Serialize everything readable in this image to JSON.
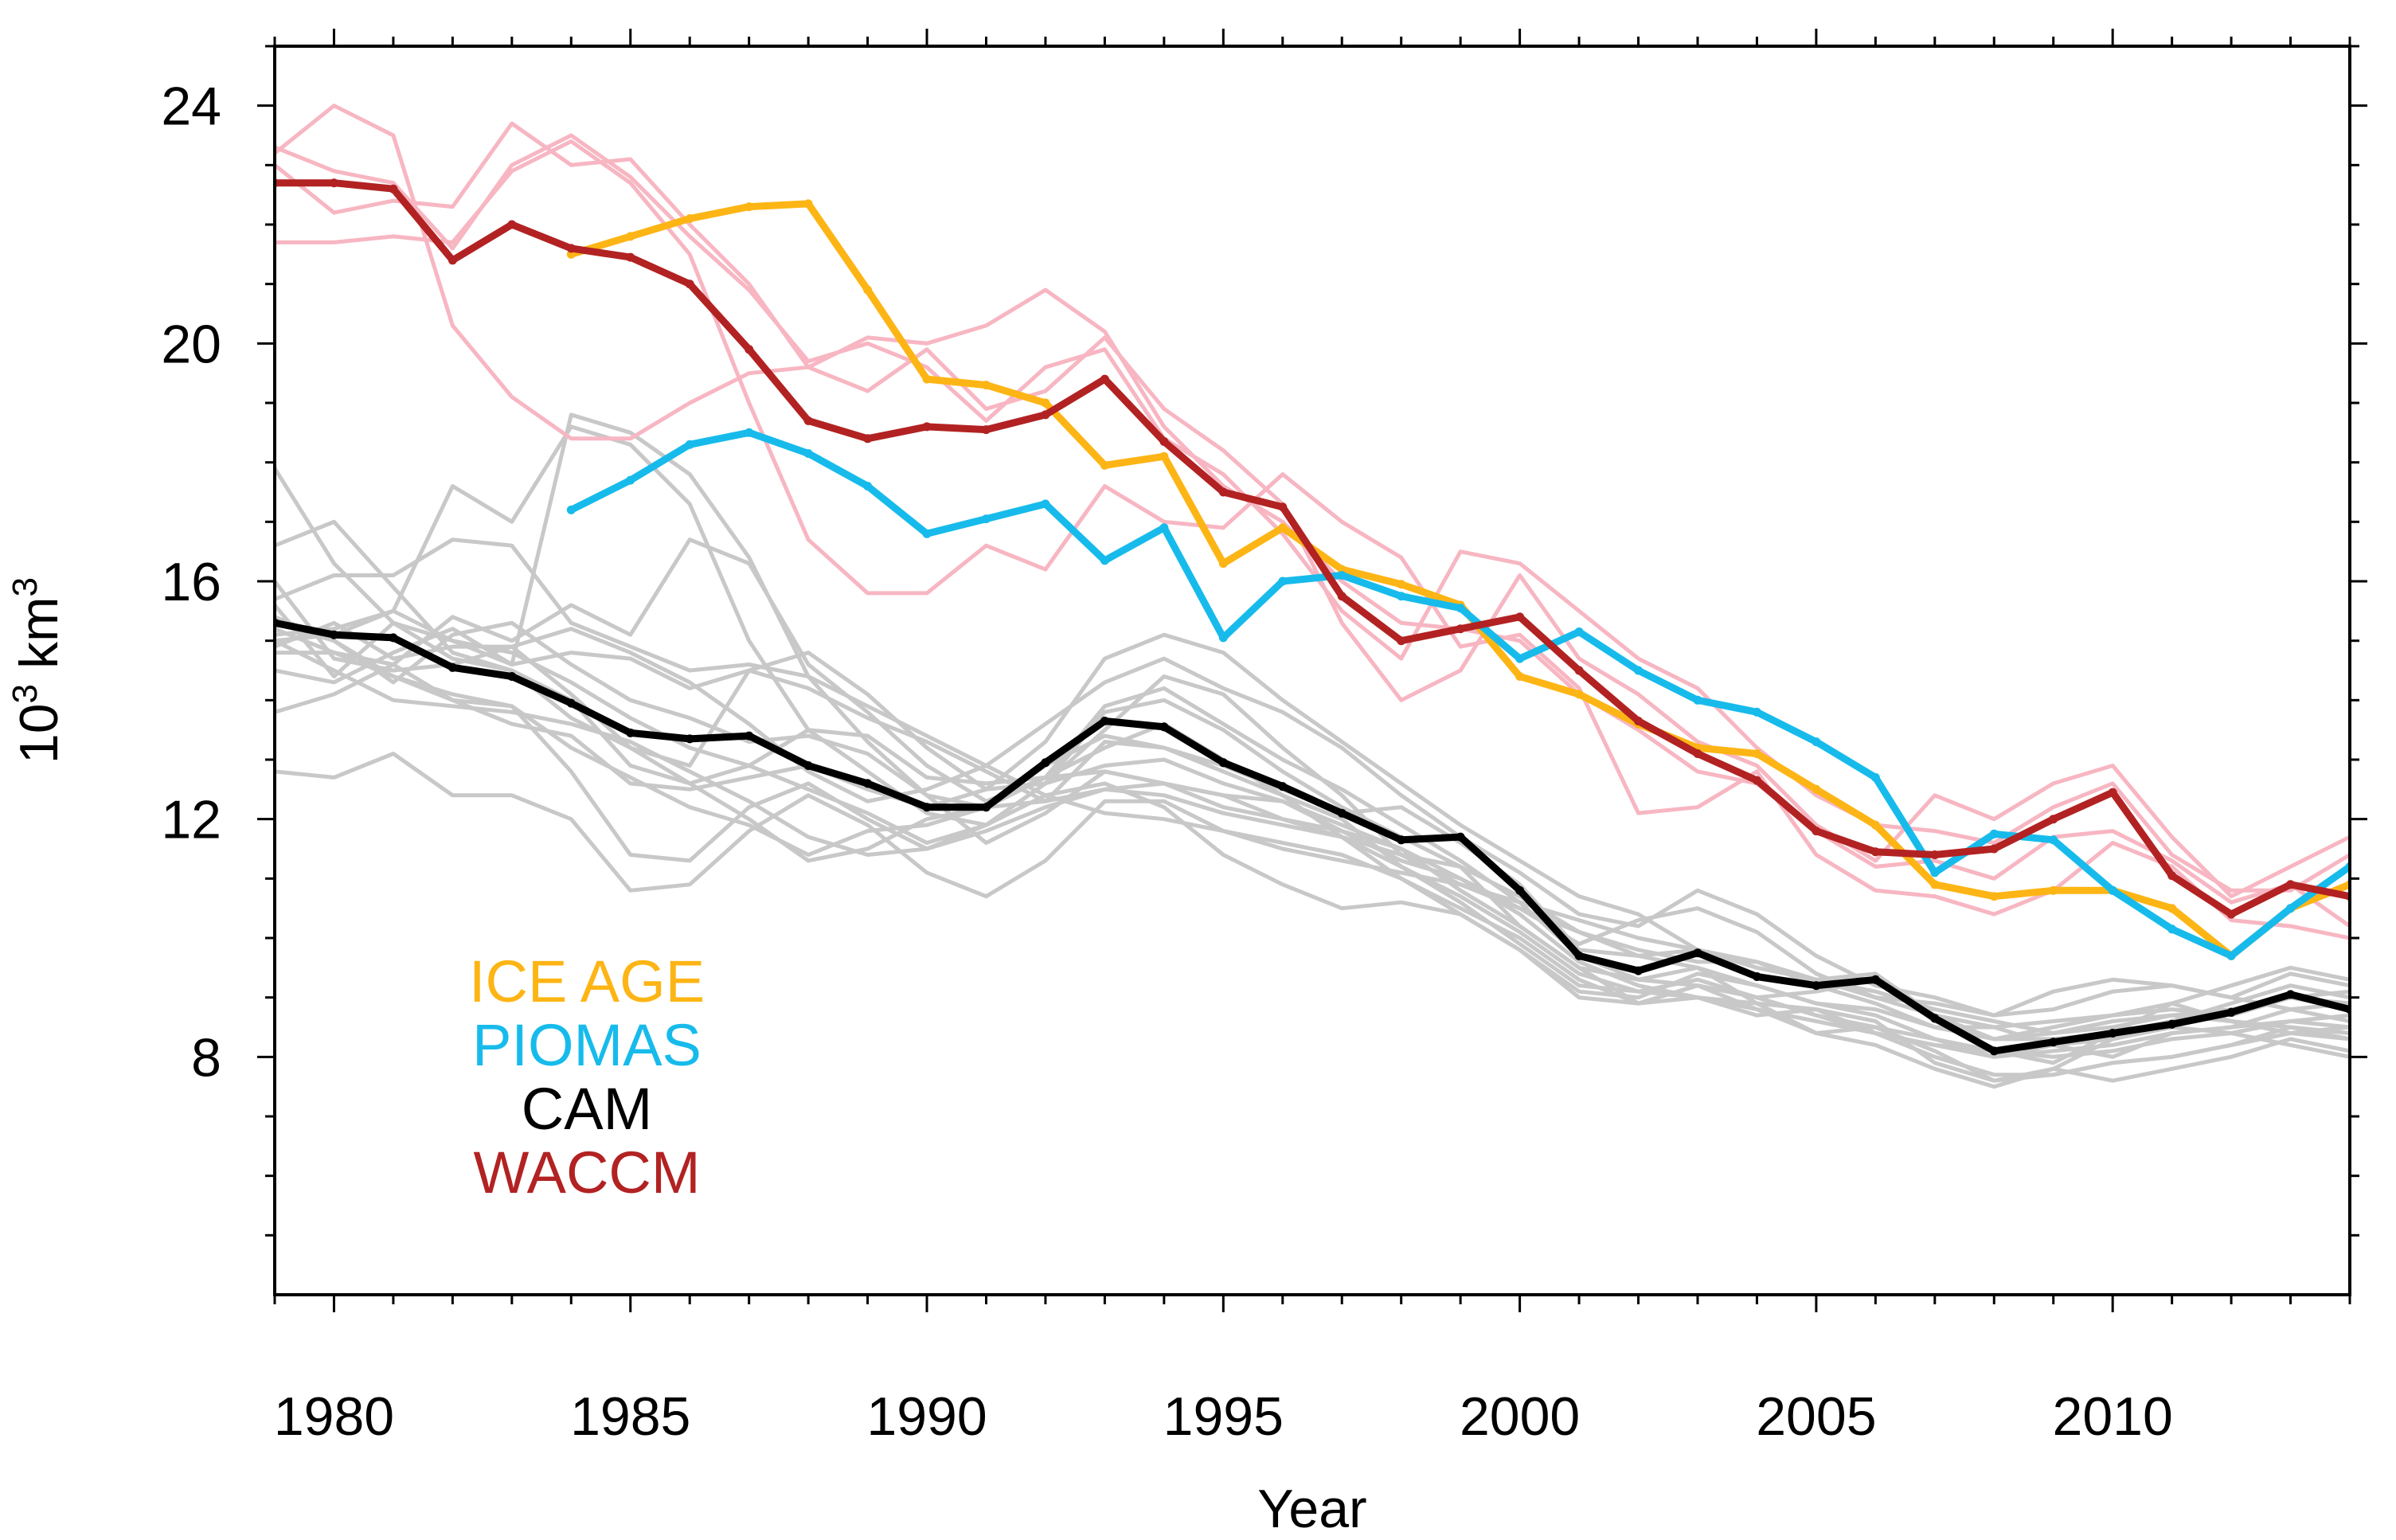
{
  "chart_data": {
    "type": "line",
    "title": "",
    "xlabel": "Year",
    "ylabel": "10",
    "ylabel_sup1": "3",
    "ylabel_unit": " km",
    "ylabel_sup2": "3",
    "xlim": [
      1979,
      2014
    ],
    "ylim": [
      4,
      25
    ],
    "xticks": [
      1980,
      1985,
      1990,
      1995,
      2000,
      2005,
      2010
    ],
    "yticks": [
      8,
      12,
      16,
      20,
      24
    ],
    "grid": false,
    "legend_position": "lower-left",
    "legend": [
      {
        "label": "ICE AGE",
        "color": "#FDB515"
      },
      {
        "label": "PIOMAS",
        "color": "#17BBEB"
      },
      {
        "label": "CAM",
        "color": "#000000"
      },
      {
        "label": "WACCM",
        "color": "#B22222"
      }
    ],
    "ensemble_colors": {
      "cam_members": "#C8C8C8",
      "waccm_members": "#F7B6C2"
    },
    "series": [
      {
        "name": "ICE AGE",
        "color": "#FDB515",
        "x": [
          1984,
          1985,
          1986,
          1987,
          1988,
          1989,
          1990,
          1991,
          1992,
          1993,
          1994,
          1995,
          1996,
          1997,
          1998,
          1999,
          2000,
          2001,
          2002,
          2003,
          2004,
          2005,
          2006,
          2007,
          2008,
          2009,
          2010,
          2011,
          2012,
          2013,
          2014
        ],
        "y": [
          21.5,
          21.8,
          22.1,
          22.3,
          22.35,
          20.9,
          19.4,
          19.3,
          19.0,
          17.95,
          18.1,
          16.3,
          16.9,
          16.2,
          15.95,
          15.6,
          14.4,
          14.1,
          13.6,
          13.2,
          13.1,
          12.5,
          11.9,
          10.9,
          10.7,
          10.8,
          10.8,
          10.5,
          9.7,
          10.5,
          10.9
        ]
      },
      {
        "name": "PIOMAS",
        "color": "#17BBEB",
        "x": [
          1984,
          1985,
          1986,
          1987,
          1988,
          1989,
          1990,
          1991,
          1992,
          1993,
          1994,
          1995,
          1996,
          1997,
          1998,
          1999,
          2000,
          2001,
          2002,
          2003,
          2004,
          2005,
          2006,
          2007,
          2008,
          2009,
          2010,
          2011,
          2012,
          2013,
          2014
        ],
        "y": [
          17.2,
          17.7,
          18.3,
          18.5,
          18.15,
          17.6,
          16.8,
          17.05,
          17.3,
          16.35,
          16.9,
          15.05,
          16.0,
          16.1,
          15.75,
          15.55,
          14.7,
          15.15,
          14.5,
          14.0,
          13.8,
          13.3,
          12.7,
          11.1,
          11.75,
          11.65,
          10.8,
          10.15,
          9.7,
          10.5,
          11.2
        ]
      },
      {
        "name": "CAM",
        "color": "#000000",
        "x": [
          1979,
          1980,
          1981,
          1982,
          1983,
          1984,
          1985,
          1986,
          1987,
          1988,
          1989,
          1990,
          1991,
          1992,
          1993,
          1994,
          1995,
          1996,
          1997,
          1998,
          1999,
          2000,
          2001,
          2002,
          2003,
          2004,
          2005,
          2006,
          2007,
          2008,
          2009,
          2010,
          2011,
          2012,
          2013,
          2014
        ],
        "y": [
          15.3,
          15.1,
          15.05,
          14.55,
          14.4,
          13.95,
          13.45,
          13.35,
          13.4,
          12.9,
          12.6,
          12.2,
          12.2,
          12.95,
          13.65,
          13.55,
          12.95,
          12.55,
          12.1,
          11.65,
          11.7,
          10.8,
          9.7,
          9.45,
          9.75,
          9.35,
          9.2,
          9.3,
          8.65,
          8.1,
          8.25,
          8.4,
          8.55,
          8.75,
          9.05,
          8.8
        ]
      },
      {
        "name": "WACCM",
        "color": "#B22222",
        "x": [
          1979,
          1980,
          1981,
          1982,
          1983,
          1984,
          1985,
          1986,
          1987,
          1988,
          1989,
          1990,
          1991,
          1992,
          1993,
          1994,
          1995,
          1996,
          1997,
          1998,
          1999,
          2000,
          2001,
          2002,
          2003,
          2004,
          2005,
          2006,
          2007,
          2008,
          2009,
          2010,
          2011,
          2012,
          2013,
          2014
        ],
        "y": [
          22.7,
          22.7,
          22.6,
          21.4,
          22.0,
          21.6,
          21.45,
          21.0,
          19.9,
          18.7,
          18.4,
          18.6,
          18.55,
          18.8,
          19.4,
          18.35,
          17.5,
          17.25,
          15.75,
          15.0,
          15.2,
          15.4,
          14.5,
          13.65,
          13.1,
          12.65,
          11.8,
          11.45,
          11.4,
          11.5,
          12.0,
          12.45,
          11.05,
          10.4,
          10.9,
          10.7
        ]
      }
    ],
    "cam_members": [
      [
        15.3,
        15.0,
        14.3,
        15.1,
        15.3,
        14.6,
        14.0,
        13.7,
        13.3,
        13.4,
        13.1,
        12.4,
        12.2,
        12.3,
        13.3,
        13.2,
        12.9,
        12.5,
        12.1,
        12.2,
        11.6,
        10.9,
        9.8,
        9.7,
        9.8,
        9.5,
        9.3,
        9.4,
        8.7,
        8.3,
        8.3,
        8.4,
        8.6,
        8.8,
        9.0,
        8.8
      ],
      [
        14.9,
        15.3,
        14.7,
        14.9,
        14.9,
        14.1,
        13.2,
        12.6,
        12.9,
        12.5,
        12.1,
        11.6,
        11.9,
        12.6,
        13.5,
        14.4,
        14.1,
        13.2,
        12.4,
        11.4,
        11.2,
        10.2,
        9.5,
        9.3,
        9.2,
        8.8,
        8.4,
        8.5,
        8.1,
        7.6,
        7.7,
        7.9,
        8.0,
        8.2,
        8.5,
        8.3
      ],
      [
        15.4,
        15.0,
        14.4,
        14.1,
        13.9,
        12.8,
        11.4,
        11.3,
        12.2,
        12.6,
        12.0,
        11.5,
        11.8,
        12.2,
        12.5,
        12.6,
        12.4,
        12.3,
        11.9,
        11.5,
        10.8,
        10.2,
        9.5,
        8.9,
        9.2,
        9.0,
        9.1,
        9.3,
        8.6,
        8.3,
        8.5,
        8.7,
        8.8,
        8.7,
        9.0,
        9.1
      ],
      [
        15.1,
        15.2,
        15.5,
        15.0,
        14.6,
        14.8,
        14.7,
        14.2,
        14.5,
        14.2,
        13.7,
        13.3,
        12.8,
        12.3,
        12.5,
        12.4,
        12.1,
        11.9,
        11.7,
        11.4,
        10.9,
        10.5,
        10.1,
        9.8,
        9.6,
        9.6,
        9.2,
        8.9,
        8.5,
        8.5,
        8.2,
        8.0,
        8.4,
        8.5,
        8.8,
        8.6
      ],
      [
        16.0,
        14.7,
        14.5,
        14.6,
        14.9,
        15.2,
        14.8,
        14.3,
        13.6,
        12.8,
        12.3,
        12.5,
        12.9,
        13.6,
        14.3,
        14.7,
        14.2,
        13.8,
        13.2,
        12.4,
        11.7,
        11.1,
        10.4,
        10.2,
        10.8,
        10.4,
        9.7,
        9.2,
        9.0,
        8.7,
        9.1,
        9.3,
        9.2,
        9.0,
        9.4,
        9.2
      ],
      [
        14.8,
        14.8,
        14.4,
        14.0,
        13.9,
        13.2,
        12.7,
        12.2,
        11.9,
        11.4,
        11.8,
        11.9,
        12.2,
        12.9,
        13.4,
        13.2,
        12.8,
        12.4,
        12.0,
        11.2,
        10.6,
        9.9,
        9.2,
        9.1,
        9.0,
        8.7,
        8.8,
        8.4,
        8.2,
        8.1,
        7.9,
        8.4,
        8.9,
        9.2,
        9.5,
        9.3
      ],
      [
        13.8,
        14.1,
        14.6,
        14.0,
        13.6,
        13.4,
        12.6,
        12.5,
        12.7,
        12.9,
        12.5,
        12.2,
        12.5,
        13.3,
        14.7,
        15.1,
        14.8,
        14.0,
        13.3,
        12.6,
        11.9,
        11.3,
        10.7,
        10.4,
        9.8,
        9.6,
        9.3,
        9.0,
        8.7,
        8.5,
        8.6,
        8.7,
        8.9,
        8.6,
        8.4,
        8.5
      ],
      [
        12.8,
        12.7,
        13.1,
        12.4,
        12.4,
        12.0,
        10.8,
        10.9,
        11.8,
        12.4,
        11.9,
        11.1,
        10.7,
        11.3,
        12.3,
        12.3,
        11.8,
        11.6,
        11.4,
        11.0,
        10.5,
        10.0,
        9.3,
        8.9,
        9.0,
        8.9,
        8.4,
        8.2,
        7.8,
        7.5,
        7.8,
        7.6,
        7.8,
        8.0,
        8.3,
        8.1
      ],
      [
        16.6,
        17.0,
        15.9,
        14.8,
        14.5,
        14.0,
        12.9,
        12.6,
        12.0,
        11.3,
        11.5,
        12.0,
        12.2,
        12.7,
        13.9,
        14.2,
        13.6,
        13.0,
        12.5,
        11.9,
        11.3,
        10.6,
        9.7,
        9.3,
        9.5,
        8.9,
        8.8,
        8.6,
        7.9,
        7.6,
        7.8,
        8.3,
        8.6,
        8.9,
        9.2,
        9.0
      ],
      [
        15.6,
        14.4,
        15.3,
        14.7,
        14.5,
        13.7,
        13.2,
        12.9,
        14.5,
        14.8,
        14.1,
        13.2,
        12.5,
        12.6,
        12.9,
        13.0,
        12.6,
        12.3,
        11.8,
        11.3,
        11.0,
        10.5,
        9.9,
        10.3,
        10.5,
        10.1,
        9.4,
        9.0,
        8.9,
        8.7,
        8.8,
        9.1,
        9.2,
        9.0,
        8.8,
        8.9
      ],
      [
        17.9,
        16.3,
        15.3,
        15.0,
        14.8,
        14.3,
        13.7,
        13.2,
        12.9,
        13.5,
        13.4,
        12.7,
        12.6,
        12.7,
        12.8,
        12.6,
        12.2,
        12.0,
        11.7,
        11.0,
        10.4,
        9.8,
        9.0,
        8.9,
        9.2,
        9.0,
        8.7,
        8.5,
        8.3,
        8.0,
        8.1,
        8.2,
        8.4,
        8.5,
        8.6,
        8.7
      ],
      [
        15.0,
        14.5,
        14.0,
        13.9,
        13.8,
        13.6,
        13.3,
        12.8,
        12.3,
        11.7,
        11.4,
        11.5,
        11.9,
        12.4,
        12.6,
        12.2,
        11.4,
        10.9,
        10.5,
        10.6,
        10.4,
        9.8,
        9.1,
        9.0,
        9.4,
        9.2,
        8.9,
        8.7,
        8.3,
        8.1,
        8.0,
        8.1,
        8.3,
        8.4,
        8.2,
        8.0
      ],
      [
        14.5,
        14.3,
        14.8,
        15.2,
        14.6,
        18.8,
        18.5,
        17.8,
        16.4,
        14.4,
        13.3,
        12.4,
        11.6,
        12.1,
        12.8,
        12.6,
        12.4,
        12.0,
        11.8,
        11.5,
        11.0,
        10.4,
        9.6,
        9.2,
        9.0,
        8.8,
        8.6,
        8.4,
        8.0,
        7.7,
        7.7,
        7.9,
        8.0,
        8.2,
        8.4,
        8.3
      ],
      [
        15.7,
        16.1,
        16.1,
        16.7,
        16.6,
        15.3,
        14.9,
        14.5,
        14.6,
        14.4,
        13.9,
        13.4,
        12.9,
        12.4,
        12.1,
        12.0,
        11.8,
        11.5,
        11.3,
        11.1,
        10.9,
        10.6,
        10.3,
        10.0,
        9.8,
        9.5,
        9.3,
        9.1,
        8.8,
        8.6,
        8.4,
        8.5,
        8.7,
        8.6,
        8.5,
        8.4
      ],
      [
        15.2,
        14.8,
        14.6,
        15.4,
        15.0,
        15.6,
        15.1,
        16.7,
        16.3,
        14.6,
        13.8,
        12.9,
        12.3,
        12.7,
        13.2,
        13.6,
        13.0,
        12.4,
        11.7,
        11.2,
        10.7,
        10.1,
        9.4,
        9.1,
        9.3,
        9.0,
        8.7,
        8.4,
        8.2,
        8.0,
        8.2,
        8.3,
        8.5,
        8.4,
        8.6,
        8.5
      ],
      [
        15.0,
        15.1,
        15.5,
        17.6,
        17.0,
        18.6,
        18.3,
        17.3,
        15.0,
        13.5,
        12.8,
        12.1,
        11.9,
        12.6,
        13.8,
        14.0,
        13.5,
        12.8,
        12.2,
        11.7,
        11.2,
        10.7,
        10.1,
        9.7,
        9.5,
        9.2,
        8.9,
        8.8,
        8.5,
        8.3,
        8.4,
        8.6,
        8.7,
        8.8,
        9.0,
        8.9
      ]
    ],
    "waccm_members": [
      [
        23.2,
        24.0,
        23.5,
        20.3,
        19.1,
        18.4,
        18.4,
        19.0,
        19.5,
        19.6,
        20.1,
        20.0,
        20.3,
        20.9,
        20.2,
        18.6,
        17.6,
        17.0,
        16.0,
        15.3,
        15.2,
        15.0,
        14.1,
        13.5,
        12.8,
        12.6,
        11.8,
        11.2,
        11.3,
        11.0,
        11.7,
        11.8,
        11.3,
        10.6,
        10.9,
        10.2
      ],
      [
        21.7,
        21.7,
        21.8,
        21.7,
        22.9,
        23.4,
        22.7,
        21.5,
        19.0,
        16.7,
        15.8,
        15.8,
        16.6,
        16.2,
        17.6,
        17.0,
        16.9,
        17.8,
        17.0,
        16.4,
        14.9,
        15.1,
        14.2,
        12.1,
        12.2,
        12.8,
        11.4,
        10.8,
        10.7,
        10.4,
        10.8,
        11.6,
        11.2,
        10.3,
        10.2,
        10.0
      ],
      [
        23.0,
        22.2,
        22.4,
        22.3,
        23.7,
        23.0,
        23.1,
        22.0,
        21.0,
        19.6,
        19.2,
        19.9,
        18.9,
        19.2,
        20.1,
        18.9,
        18.2,
        17.3,
        15.3,
        14.0,
        14.5,
        16.1,
        14.7,
        14.1,
        13.3,
        12.9,
        11.9,
        11.3,
        12.4,
        12.0,
        12.6,
        12.9,
        11.7,
        10.7,
        11.2,
        11.7
      ],
      [
        23.3,
        22.9,
        22.7,
        21.6,
        23.0,
        23.5,
        22.8,
        21.8,
        20.9,
        19.7,
        20.0,
        19.6,
        18.7,
        19.6,
        19.9,
        18.4,
        17.8,
        16.8,
        15.5,
        14.7,
        16.5,
        16.3,
        15.5,
        14.7,
        14.2,
        13.2,
        12.4,
        11.9,
        11.8,
        11.6,
        12.2,
        12.6,
        11.4,
        10.8,
        10.8,
        11.4
      ]
    ]
  }
}
